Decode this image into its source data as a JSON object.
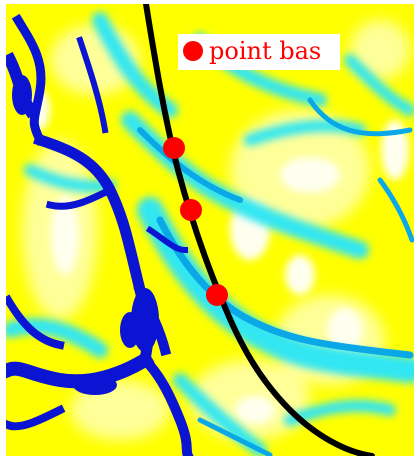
{
  "map": {
    "colors": {
      "background_yellow": "#ffff00",
      "light_yellow": "#ffff99",
      "highlight_white": "#fffff0",
      "cyan": "#33e6f2",
      "mid_blue": "#0aa8e6",
      "deep_blue": "#0a14d2",
      "path": "#000000",
      "points": "#ff0000",
      "legend_bg": "#ffffff"
    },
    "legend": {
      "label": "point bas",
      "marker_color": "#ff0000"
    },
    "path_line": {
      "name": "black-trajectory-line",
      "color": "#000000"
    },
    "points": [
      {
        "name": "low-point-1"
      },
      {
        "name": "low-point-2"
      },
      {
        "name": "low-point-3"
      }
    ]
  }
}
